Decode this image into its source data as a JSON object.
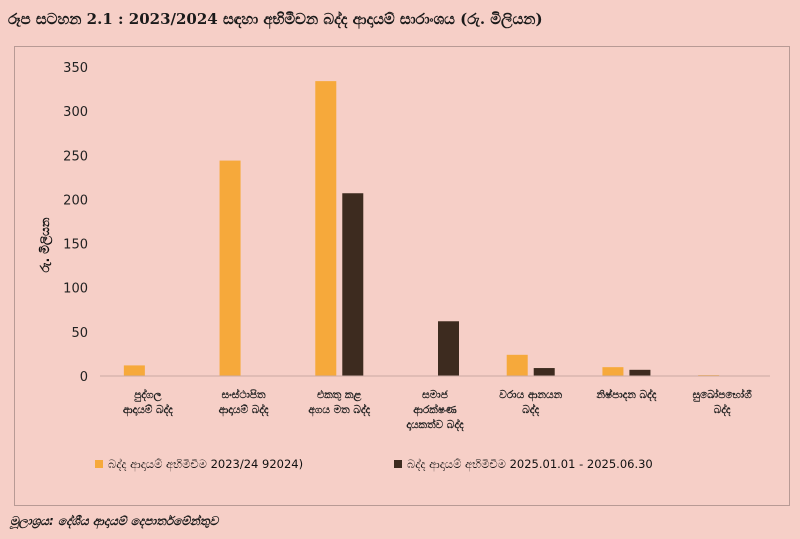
{
  "title": "රූප සටහන 2.1 : 2023/2024 සඳහා අභිමීචන බද්ද ආදායම් සාරාංශය (රු. මිලියන)",
  "source": "මූලාශ්‍රය: දේශීය ආදායම් දෙපාර්තමේන්තුව",
  "colors": {
    "series1": "#f6a93b",
    "series2": "#3d2b1f",
    "background": "#f6cfc7"
  },
  "chart_data": {
    "type": "bar",
    "ylabel": "රු. මිලියන",
    "ylim": [
      0,
      350
    ],
    "yticks": [
      0,
      50,
      100,
      150,
      200,
      250,
      300,
      350
    ],
    "grid": false,
    "legend": "bottom",
    "categories": [
      [
        "පුද්ගල",
        "ආදායම් බද්ද"
      ],
      [
        "සංස්ථාපිත",
        "ආදායම් බද්ද"
      ],
      [
        "එකතු කළ",
        "අගය මත බද්ද"
      ],
      [
        "සමාජ",
        "ආරක්ෂණ",
        "දායකත්ව බද්ද"
      ],
      [
        "වරාය ආනයන",
        "බද්ද"
      ],
      [
        "නිෂ්පාදන බද්ද"
      ],
      [
        "සුඛෝපභෝගී",
        "බද්ද"
      ]
    ],
    "series": [
      {
        "name": "බද්ද ආදායම් අභිමීචීම 2023/24 92024)",
        "values": [
          12,
          244,
          334,
          0,
          24,
          10,
          1
        ]
      },
      {
        "name": "බද්ද ආදායම් අභිමීචීම  2025.01.01 - 2025.06.30",
        "values": [
          0,
          0,
          207,
          62,
          9,
          7,
          0
        ]
      }
    ]
  }
}
